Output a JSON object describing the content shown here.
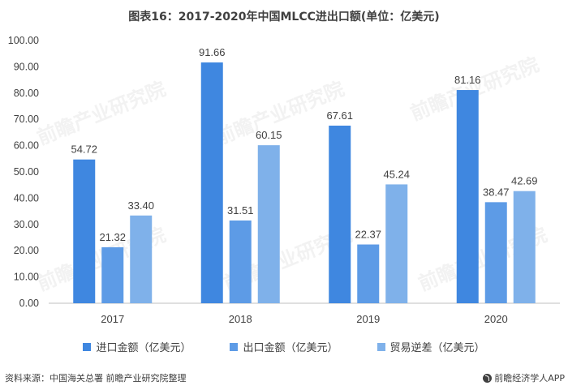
{
  "title": "图表16：2017-2020年中国MLCC进出口额(单位：亿美元)",
  "source": "资料来源：中国海关总署 前瞻产业研究院整理",
  "brand": "前瞻经济学人APP",
  "watermark": "前瞻产业研究院",
  "colors": {
    "series1": "#3f87e0",
    "series2": "#5d9be6",
    "series3": "#7fb1ea",
    "axis": "#bfbfbf",
    "text": "#404040"
  },
  "chart_data": {
    "type": "bar",
    "categories": [
      "2017",
      "2018",
      "2019",
      "2020"
    ],
    "series": [
      {
        "name": "进口金额（亿美元）",
        "values": [
          54.72,
          91.66,
          67.61,
          81.16
        ]
      },
      {
        "name": "出口金额（亿美元）",
        "values": [
          21.32,
          31.51,
          22.37,
          38.47
        ]
      },
      {
        "name": "贸易逆差（亿美元）",
        "values": [
          33.4,
          60.15,
          45.24,
          42.69
        ]
      }
    ],
    "value_labels": [
      [
        "54.72",
        "91.66",
        "67.61",
        "81.16"
      ],
      [
        "21.32",
        "31.51",
        "22.37",
        "38.47"
      ],
      [
        "33.40",
        "60.15",
        "45.24",
        "42.69"
      ]
    ],
    "ylim": [
      0,
      100
    ],
    "yticks": [
      "0.00",
      "10.00",
      "20.00",
      "30.00",
      "40.00",
      "50.00",
      "60.00",
      "70.00",
      "80.00",
      "90.00",
      "100.00"
    ],
    "grid": false,
    "legend_position": "bottom"
  }
}
